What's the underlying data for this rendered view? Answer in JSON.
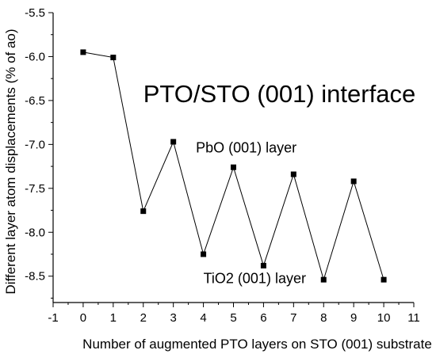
{
  "chart_data": {
    "type": "line",
    "xlabel": "Number of augmented PTO layers on STO (001) substrate",
    "ylabel": "Different layer atom displacements (% of ao)",
    "xlim": [
      -1,
      11
    ],
    "ylim": [
      -8.8,
      -5.5
    ],
    "x_ticks": [
      -1,
      0,
      1,
      2,
      3,
      4,
      5,
      6,
      7,
      8,
      9,
      10,
      11
    ],
    "y_ticks": [
      -5.5,
      -6.0,
      -6.5,
      -7.0,
      -7.5,
      -8.0,
      -8.5
    ],
    "x_tick_labels": [
      "-1",
      "0",
      "1",
      "2",
      "3",
      "4",
      "5",
      "6",
      "7",
      "8",
      "9",
      "10",
      "11"
    ],
    "y_tick_labels": [
      "-5.5",
      "-6.0",
      "-6.5",
      "-7.0",
      "-7.5",
      "-8.0",
      "-8.5"
    ],
    "series": [
      {
        "marker": "square",
        "color": "#000000",
        "x": [
          0,
          1,
          2,
          3,
          4,
          5,
          6,
          7,
          8,
          9,
          10
        ],
        "y": [
          -5.95,
          -6.01,
          -7.76,
          -6.97,
          -8.25,
          -7.26,
          -8.38,
          -7.34,
          -8.54,
          -7.42,
          -8.54
        ]
      }
    ],
    "annotations": [
      {
        "text": "PTO/STO (001) interface",
        "x": 2.0,
        "y": -6.52,
        "size": "large"
      },
      {
        "text": "PbO (001) layer",
        "x": 3.75,
        "y": -7.09,
        "size": "small"
      },
      {
        "text": "TiO2 (001) layer",
        "x": 4.0,
        "y": -8.58,
        "size": "small"
      }
    ],
    "grid": false,
    "legend": "none"
  }
}
